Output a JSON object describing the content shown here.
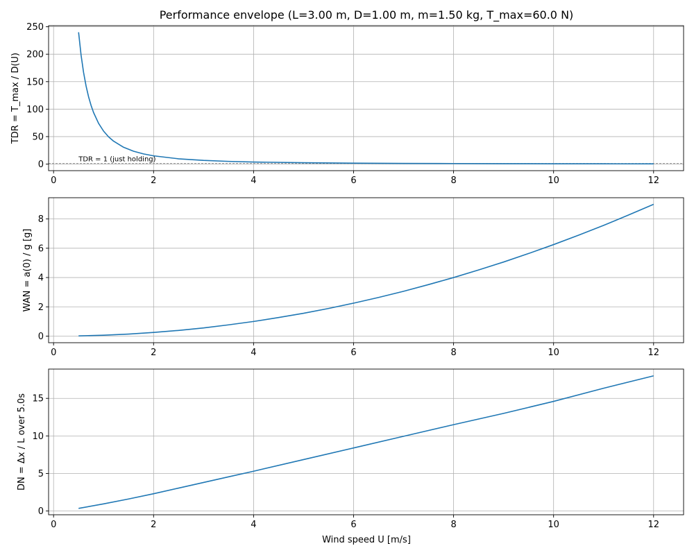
{
  "figure": {
    "title": "Performance envelope (L=3.00 m, D=1.00 m, m=1.50 kg, T_max=60.0 N)"
  },
  "colors": {
    "series": "#1f77b4",
    "grid": "#b0b0b0",
    "axes": "#000000",
    "reference_line": "#808080"
  },
  "chart_data": [
    {
      "type": "line",
      "id": "tdr",
      "title": "Performance envelope (L=3.00 m, D=1.00 m, m=1.50 kg, T_max=60.0 N)",
      "xlabel": "",
      "ylabel": "TDR = T_max / D(U)",
      "xlim": [
        -0.1,
        12.6
      ],
      "ylim": [
        -12,
        252
      ],
      "xticks": [
        0,
        2,
        4,
        6,
        8,
        10,
        12
      ],
      "yticks": [
        0,
        50,
        100,
        150,
        200,
        250
      ],
      "grid": true,
      "reference_line": {
        "y": 1,
        "style": "dashed",
        "label": "TDR = 1 (just holding)"
      },
      "series": [
        {
          "x": [
            0.5,
            0.55,
            0.6,
            0.65,
            0.7,
            0.75,
            0.8,
            0.9,
            1.0,
            1.1,
            1.2,
            1.4,
            1.6,
            1.8,
            2.0,
            2.5,
            3.0,
            3.5,
            4.0,
            5.0,
            6.0,
            7.0,
            8.0,
            9.0,
            10.0,
            11.0,
            12.0
          ],
          "values": [
            240,
            198.3,
            166.7,
            142,
            122.4,
            106.7,
            93.8,
            74.1,
            60,
            49.6,
            41.7,
            30.6,
            23.4,
            18.5,
            15,
            9.6,
            6.7,
            4.9,
            3.75,
            2.4,
            1.67,
            1.22,
            0.94,
            0.74,
            0.6,
            0.5,
            0.42
          ]
        }
      ]
    },
    {
      "type": "line",
      "id": "wan",
      "xlabel": "",
      "ylabel": "WAN = a(0) / g [g]",
      "xlim": [
        -0.1,
        12.6
      ],
      "ylim": [
        -0.45,
        9.45
      ],
      "xticks": [
        0,
        2,
        4,
        6,
        8,
        10,
        12
      ],
      "yticks": [
        0,
        2,
        4,
        6,
        8
      ],
      "grid": true,
      "series": [
        {
          "x": [
            0.5,
            1,
            1.5,
            2,
            2.5,
            3,
            3.5,
            4,
            4.5,
            5,
            5.5,
            6,
            6.5,
            7,
            7.5,
            8,
            8.5,
            9,
            9.5,
            10,
            10.5,
            11,
            11.5,
            12
          ],
          "values": [
            0.016,
            0.0625,
            0.14,
            0.25,
            0.39,
            0.56,
            0.77,
            1.0,
            1.27,
            1.56,
            1.89,
            2.25,
            2.64,
            3.06,
            3.52,
            4.0,
            4.52,
            5.06,
            5.64,
            6.25,
            6.89,
            7.56,
            8.27,
            9.0
          ]
        }
      ]
    },
    {
      "type": "line",
      "id": "dn",
      "xlabel": "Wind speed U [m/s]",
      "ylabel": "DN = Δx / L over 5.0s",
      "xlim": [
        -0.1,
        12.6
      ],
      "ylim": [
        -0.5,
        18.9
      ],
      "xticks": [
        0,
        2,
        4,
        6,
        8,
        10,
        12
      ],
      "yticks": [
        0,
        5,
        10,
        15
      ],
      "grid": true,
      "series": [
        {
          "x": [
            0.5,
            1,
            1.5,
            2,
            2.5,
            3,
            3.5,
            4,
            5,
            6,
            7,
            8,
            9,
            10,
            11,
            12
          ],
          "values": [
            0.35,
            0.95,
            1.6,
            2.3,
            3.05,
            3.8,
            4.55,
            5.3,
            6.85,
            8.4,
            9.95,
            11.5,
            13.0,
            14.6,
            16.35,
            18.0
          ]
        }
      ]
    }
  ]
}
